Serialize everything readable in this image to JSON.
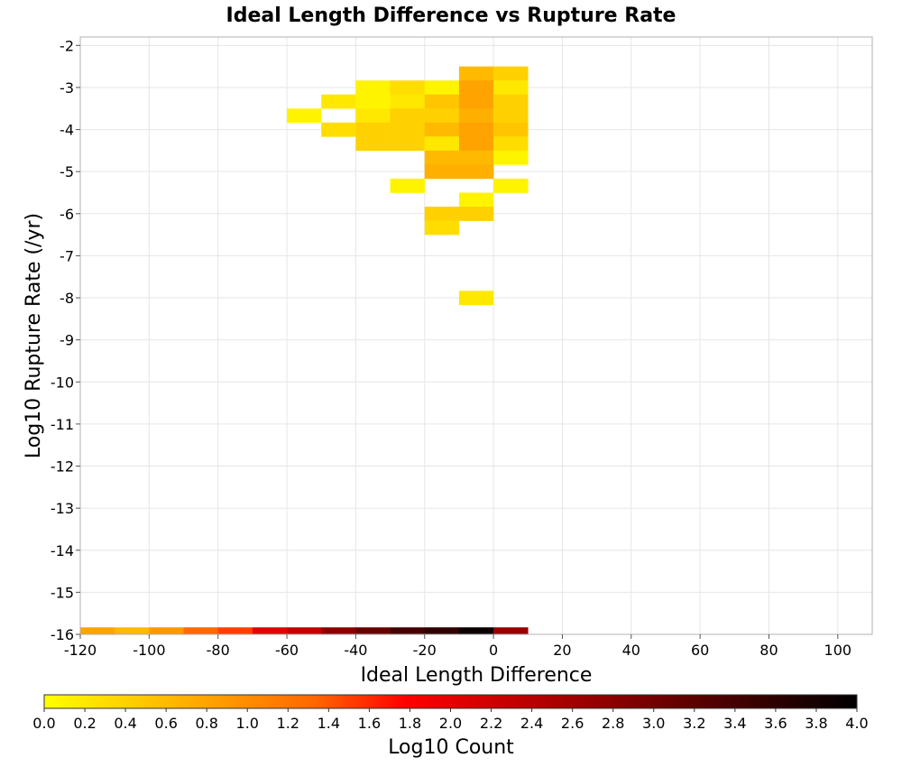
{
  "chart_data": {
    "type": "heatmap",
    "title": "Ideal Length Difference vs Rupture Rate",
    "xlabel": "Ideal Length Difference",
    "ylabel": "Log10 Rupture Rate (/yr)",
    "xlim": [
      -120,
      110
    ],
    "ylim": [
      -16,
      -1.8
    ],
    "x_ticks": [
      -120,
      -100,
      -80,
      -60,
      -40,
      -20,
      0,
      20,
      40,
      60,
      80,
      100
    ],
    "y_ticks": [
      -2,
      -3,
      -4,
      -5,
      -6,
      -7,
      -8,
      -9,
      -10,
      -11,
      -12,
      -13,
      -14,
      -15,
      -16
    ],
    "grid": true,
    "bin_width": 10,
    "bin_height": 0.3333,
    "colorbar": {
      "label": "Log10 Count",
      "range": [
        0.0,
        4.0
      ],
      "ticks": [
        "0.0",
        "0.2",
        "0.4",
        "0.6",
        "0.8",
        "1.0",
        "1.2",
        "1.4",
        "1.6",
        "1.8",
        "2.0",
        "2.2",
        "2.4",
        "2.6",
        "2.8",
        "3.0",
        "3.2",
        "3.4",
        "3.6",
        "3.8",
        "4.0"
      ],
      "colors": [
        "#ffff00",
        "#ffcc00",
        "#ff9900",
        "#ff6600",
        "#ff0000",
        "#cc0000",
        "#990000",
        "#660000",
        "#330000",
        "#000000"
      ],
      "placement": "bottom"
    },
    "cells": [
      {
        "x": -10,
        "y": -2.8333,
        "value": 0.6
      },
      {
        "x": 0,
        "y": -2.8333,
        "value": 0.4
      },
      {
        "x": -40,
        "y": -3.1667,
        "value": 0.1
      },
      {
        "x": -30,
        "y": -3.1667,
        "value": 0.3
      },
      {
        "x": -20,
        "y": -3.1667,
        "value": 0.1
      },
      {
        "x": -10,
        "y": -3.1667,
        "value": 0.8
      },
      {
        "x": 0,
        "y": -3.1667,
        "value": 0.2
      },
      {
        "x": -50,
        "y": -3.5,
        "value": 0.2
      },
      {
        "x": -40,
        "y": -3.5,
        "value": 0.1
      },
      {
        "x": -30,
        "y": -3.5,
        "value": 0.2
      },
      {
        "x": -20,
        "y": -3.5,
        "value": 0.5
      },
      {
        "x": -10,
        "y": -3.5,
        "value": 0.8
      },
      {
        "x": 0,
        "y": -3.5,
        "value": 0.4
      },
      {
        "x": -60,
        "y": -3.8333,
        "value": 0.1
      },
      {
        "x": -40,
        "y": -3.8333,
        "value": 0.2
      },
      {
        "x": -30,
        "y": -3.8333,
        "value": 0.4
      },
      {
        "x": -20,
        "y": -3.8333,
        "value": 0.4
      },
      {
        "x": -10,
        "y": -3.8333,
        "value": 0.7
      },
      {
        "x": 0,
        "y": -3.8333,
        "value": 0.4
      },
      {
        "x": -50,
        "y": -4.1667,
        "value": 0.3
      },
      {
        "x": -40,
        "y": -4.1667,
        "value": 0.4
      },
      {
        "x": -30,
        "y": -4.1667,
        "value": 0.4
      },
      {
        "x": -20,
        "y": -4.1667,
        "value": 0.6
      },
      {
        "x": -10,
        "y": -4.1667,
        "value": 0.8
      },
      {
        "x": 0,
        "y": -4.1667,
        "value": 0.5
      },
      {
        "x": -40,
        "y": -4.5,
        "value": 0.4
      },
      {
        "x": -30,
        "y": -4.5,
        "value": 0.4
      },
      {
        "x": -20,
        "y": -4.5,
        "value": 0.2
      },
      {
        "x": -10,
        "y": -4.5,
        "value": 0.8
      },
      {
        "x": 0,
        "y": -4.5,
        "value": 0.3
      },
      {
        "x": -20,
        "y": -4.8333,
        "value": 0.6
      },
      {
        "x": -10,
        "y": -4.8333,
        "value": 0.6
      },
      {
        "x": 0,
        "y": -4.8333,
        "value": 0.1
      },
      {
        "x": -20,
        "y": -5.1667,
        "value": 0.7
      },
      {
        "x": -10,
        "y": -5.1667,
        "value": 0.7
      },
      {
        "x": -30,
        "y": -5.5,
        "value": 0.1
      },
      {
        "x": 0,
        "y": -5.5,
        "value": 0.1
      },
      {
        "x": -10,
        "y": -5.8333,
        "value": 0.1
      },
      {
        "x": -20,
        "y": -6.1667,
        "value": 0.4
      },
      {
        "x": -10,
        "y": -6.1667,
        "value": 0.4
      },
      {
        "x": -20,
        "y": -6.5,
        "value": 0.3
      },
      {
        "x": -10,
        "y": -8.1667,
        "value": 0.2
      },
      {
        "x": -120,
        "y": -16.1667,
        "value": 0.8
      },
      {
        "x": -110,
        "y": -16.1667,
        "value": 0.6
      },
      {
        "x": -100,
        "y": -16.1667,
        "value": 0.9
      },
      {
        "x": -90,
        "y": -16.1667,
        "value": 1.3
      },
      {
        "x": -80,
        "y": -16.1667,
        "value": 1.5
      },
      {
        "x": -70,
        "y": -16.1667,
        "value": 2.0
      },
      {
        "x": -60,
        "y": -16.1667,
        "value": 2.3
      },
      {
        "x": -50,
        "y": -16.1667,
        "value": 2.8
      },
      {
        "x": -40,
        "y": -16.1667,
        "value": 3.1
      },
      {
        "x": -30,
        "y": -16.1667,
        "value": 3.4
      },
      {
        "x": -20,
        "y": -16.1667,
        "value": 3.6
      },
      {
        "x": -10,
        "y": -16.1667,
        "value": 3.9
      },
      {
        "x": 0,
        "y": -16.1667,
        "value": 2.7
      }
    ]
  }
}
